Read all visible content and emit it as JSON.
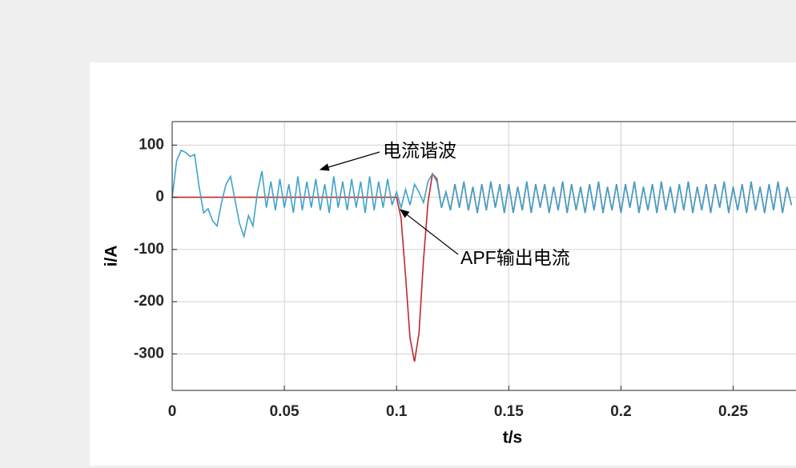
{
  "chart_data": {
    "type": "line",
    "x_label": "t/s",
    "y_label": "i/A",
    "annotations": [
      "电流谐波",
      "APF输出电流"
    ],
    "x": [
      0,
      0.002,
      0.004,
      0.006,
      0.008,
      0.01,
      0.012,
      0.014,
      0.016,
      0.018,
      0.02,
      0.022,
      0.024,
      0.026,
      0.028,
      0.03,
      0.032,
      0.034,
      0.036,
      0.038,
      0.04,
      0.042,
      0.044,
      0.046,
      0.048,
      0.05,
      0.052,
      0.054,
      0.056,
      0.058,
      0.06,
      0.062,
      0.064,
      0.066,
      0.068,
      0.07,
      0.072,
      0.074,
      0.076,
      0.078,
      0.08,
      0.082,
      0.084,
      0.086,
      0.088,
      0.09,
      0.092,
      0.094,
      0.096,
      0.098,
      0.1,
      0.102,
      0.104,
      0.106,
      0.108,
      0.11,
      0.112,
      0.114,
      0.116,
      0.118,
      0.12,
      0.122,
      0.124,
      0.126,
      0.128,
      0.13,
      0.132,
      0.134,
      0.136,
      0.138,
      0.14,
      0.142,
      0.144,
      0.146,
      0.148,
      0.15,
      0.152,
      0.154,
      0.156,
      0.158,
      0.16,
      0.162,
      0.164,
      0.166,
      0.168,
      0.17,
      0.172,
      0.174,
      0.176,
      0.178,
      0.18,
      0.182,
      0.184,
      0.186,
      0.188,
      0.19,
      0.192,
      0.194,
      0.196,
      0.198,
      0.2,
      0.202,
      0.204,
      0.206,
      0.208,
      0.21,
      0.212,
      0.214,
      0.216,
      0.218,
      0.22,
      0.222,
      0.224,
      0.226,
      0.228,
      0.23,
      0.232,
      0.234,
      0.236,
      0.238,
      0.24,
      0.242,
      0.244,
      0.246,
      0.248,
      0.25,
      0.252,
      0.254,
      0.256,
      0.258,
      0.26,
      0.262,
      0.264,
      0.266,
      0.268,
      0.27,
      0.272,
      0.274,
      0.276
    ],
    "series": [
      {
        "color": "#c0282d",
        "values": [
          0,
          0,
          0,
          0,
          0,
          0,
          0,
          0,
          0,
          0,
          0,
          0,
          0,
          0,
          0,
          0,
          0,
          0,
          0,
          0,
          0,
          0,
          0,
          0,
          0,
          0,
          0,
          0,
          0,
          0,
          0,
          0,
          0,
          0,
          0,
          0,
          0,
          0,
          0,
          0,
          0,
          0,
          0,
          0,
          0,
          0,
          0,
          0,
          0,
          0,
          0,
          -40,
          -150,
          -270,
          -315,
          -260,
          -120,
          -10,
          45,
          35,
          -20,
          10,
          -25,
          25,
          -20,
          30,
          -25,
          20,
          -30,
          25,
          -25,
          30,
          -20,
          25,
          -30,
          25,
          -30,
          20,
          -25,
          30,
          -30,
          25,
          -20,
          25,
          -30,
          20,
          -25,
          30,
          -30,
          25,
          -25,
          20,
          -30,
          25,
          -25,
          30,
          -30,
          20,
          -25,
          25,
          -30,
          25,
          -20,
          30,
          -30,
          20,
          -25,
          25,
          -30,
          30,
          -25,
          20,
          -30,
          25,
          -25,
          30,
          -30,
          20,
          -25,
          25,
          -30,
          25,
          -20,
          30,
          -30,
          20,
          -25,
          25,
          -30,
          30,
          -25,
          20,
          -30,
          25,
          -25,
          30,
          -30,
          20,
          -15
        ]
      },
      {
        "color": "#3fa3c9",
        "values": [
          0,
          70,
          90,
          86,
          78,
          82,
          20,
          -30,
          -22,
          -45,
          -55,
          -10,
          25,
          40,
          -5,
          -50,
          -75,
          -35,
          -55,
          10,
          50,
          -20,
          30,
          -25,
          35,
          -20,
          25,
          -30,
          40,
          -25,
          30,
          -20,
          35,
          -25,
          25,
          -30,
          40,
          -20,
          30,
          -25,
          35,
          -20,
          30,
          -30,
          40,
          -25,
          30,
          -20,
          35,
          -15,
          10,
          -20,
          15,
          -15,
          25,
          10,
          -10,
          30,
          45,
          30,
          -20,
          10,
          -25,
          25,
          -20,
          30,
          -25,
          20,
          -30,
          25,
          -25,
          30,
          -20,
          25,
          -30,
          25,
          -30,
          20,
          -25,
          30,
          -30,
          25,
          -20,
          25,
          -30,
          20,
          -25,
          30,
          -30,
          25,
          -25,
          20,
          -30,
          25,
          -25,
          30,
          -30,
          20,
          -25,
          25,
          -30,
          25,
          -20,
          30,
          -30,
          20,
          -25,
          25,
          -30,
          30,
          -25,
          20,
          -30,
          25,
          -25,
          30,
          -30,
          20,
          -25,
          25,
          -30,
          25,
          -20,
          30,
          -30,
          20,
          -25,
          25,
          -30,
          30,
          -25,
          20,
          -30,
          25,
          -25,
          30,
          -30,
          20,
          -15
        ]
      }
    ],
    "xlim": [
      0,
      0.278
    ],
    "ylim": [
      -370,
      145
    ],
    "xticks": [
      0,
      0.05,
      0.1,
      0.15,
      0.2,
      0.25
    ],
    "yticks": [
      -300,
      -200,
      -100,
      0,
      100
    ],
    "grid": true
  }
}
